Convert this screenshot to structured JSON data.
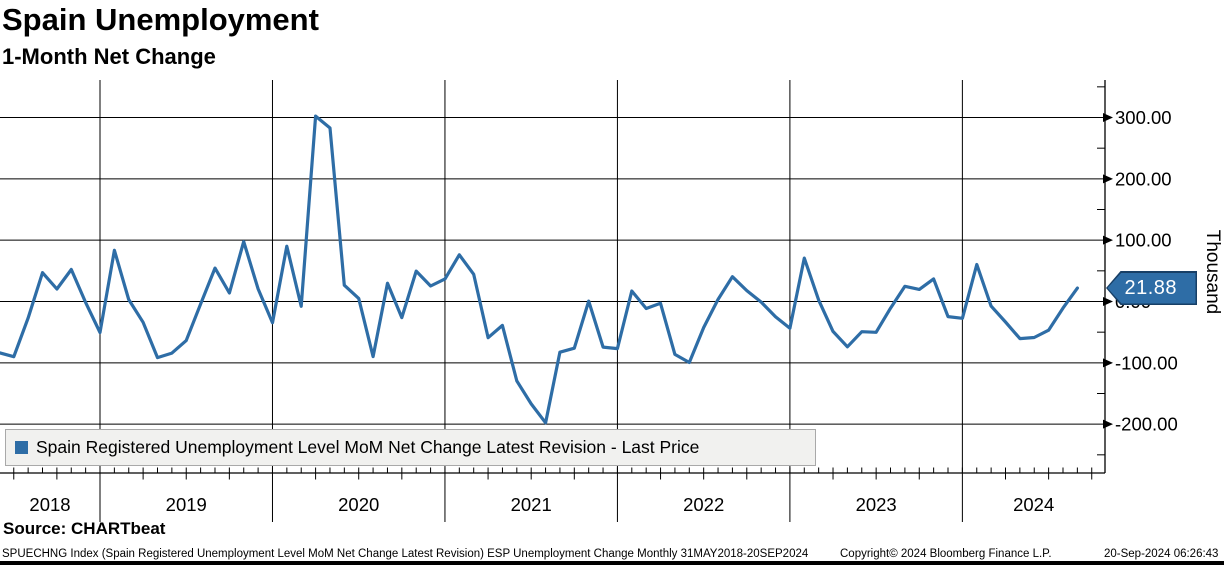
{
  "header": {
    "title": "Spain Unemployment",
    "subtitle": "1-Month Net Change"
  },
  "footer": {
    "source": "Source: CHARTbeat",
    "security_line": "SPUECHNG Index (Spain Registered Unemployment Level MoM Net Change Latest Revision) ESP Unemployment Change  Monthly 31MAY2018-20SEP2024",
    "copyright": "Copyright© 2024 Bloomberg Finance L.P.",
    "timestamp": "20-Sep-2024 06:26:43"
  },
  "chart_data": {
    "type": "line",
    "title": "Spain Unemployment",
    "subtitle": "1-Month Net Change",
    "series_name": "Spain Registered Unemployment Level MoM Net Change Latest Revision - Last Price",
    "unit_label": "Thousand",
    "last_price": "21.88",
    "line_color": "#2e6da6",
    "badge_color": "#2e6da6",
    "badge_border_color": "#173f66",
    "grid": true,
    "legend_position": "bottom-left",
    "x_range": "31MAY2018-20SEP2024",
    "ylim": [
      -230,
      320
    ],
    "y_ticks": [
      {
        "label": "300.00",
        "value": 300
      },
      {
        "label": "200.00",
        "value": 200
      },
      {
        "label": "100.00",
        "value": 100
      },
      {
        "label": "0.00",
        "value": 0
      },
      {
        "label": "-100.00",
        "value": -100
      },
      {
        "label": "-200.00",
        "value": -200
      }
    ],
    "y_minor_ticks": [
      350,
      250,
      150,
      50,
      -50,
      -150,
      -250
    ],
    "years": [
      "2018",
      "2019",
      "2020",
      "2021",
      "2022",
      "2023",
      "2024"
    ],
    "months": [
      "2018-05",
      "2018-06",
      "2018-07",
      "2018-08",
      "2018-09",
      "2018-10",
      "2018-11",
      "2018-12",
      "2019-01",
      "2019-02",
      "2019-03",
      "2019-04",
      "2019-05",
      "2019-06",
      "2019-07",
      "2019-08",
      "2019-09",
      "2019-10",
      "2019-11",
      "2019-12",
      "2020-01",
      "2020-02",
      "2020-03",
      "2020-04",
      "2020-05",
      "2020-06",
      "2020-07",
      "2020-08",
      "2020-09",
      "2020-10",
      "2020-11",
      "2020-12",
      "2021-01",
      "2021-02",
      "2021-03",
      "2021-04",
      "2021-05",
      "2021-06",
      "2021-07",
      "2021-08",
      "2021-09",
      "2021-10",
      "2021-11",
      "2021-12",
      "2022-01",
      "2022-02",
      "2022-03",
      "2022-04",
      "2022-05",
      "2022-06",
      "2022-07",
      "2022-08",
      "2022-09",
      "2022-10",
      "2022-11",
      "2022-12",
      "2023-01",
      "2023-02",
      "2023-03",
      "2023-04",
      "2023-05",
      "2023-06",
      "2023-07",
      "2023-08",
      "2023-09",
      "2023-10",
      "2023-11",
      "2023-12",
      "2024-01",
      "2024-02",
      "2024-03",
      "2024-04",
      "2024-05",
      "2024-06",
      "2024-07",
      "2024-08"
    ],
    "values": [
      -83.7,
      -90.0,
      -27.1,
      47.0,
      20.4,
      52.2,
      -1.5,
      -50.6,
      83.5,
      3.3,
      -33.9,
      -91.5,
      -84.1,
      -63.8,
      -4.3,
      54.4,
      13.9,
      97.6,
      20.5,
      -34.6,
      90.2,
      -7.8,
      302.3,
      282.9,
      26.6,
      5.1,
      -89.8,
      29.8,
      -26.3,
      49.6,
      25.3,
      36.8,
      76.2,
      44.4,
      -59.1,
      -39.0,
      -129.4,
      -166.9,
      -197.8,
      -82.6,
      -76.1,
      0.7,
      -74.4,
      -76.8,
      17.2,
      -11.4,
      -2.9,
      -86.3,
      -99.5,
      -42.4,
      3.2,
      40.4,
      17.7,
      -1.0,
      -25.0,
      -43.7,
      70.7,
      2.6,
      -48.8,
      -73.9,
      -49.3,
      -50.3,
      -11.0,
      24.8,
      19.8,
      36.9,
      -24.6,
      -27.4,
      60.4,
      -7.5,
      -33.4,
      -60.5,
      -58.7,
      -46.8,
      -10.8,
      21.88
    ]
  }
}
